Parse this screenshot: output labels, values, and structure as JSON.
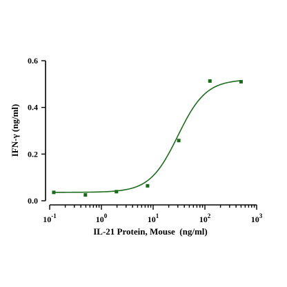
{
  "chart_data": {
    "type": "scatter",
    "title": "",
    "xlabel": "IL-21 Protein, Mouse  (ng/ml)",
    "ylabel": "IFN-γ (ng/ml)",
    "x_scale": "log",
    "xlim": [
      0.1,
      1000
    ],
    "ylim": [
      0.0,
      0.6
    ],
    "x_ticks": [
      {
        "value": 0.1,
        "base": "10",
        "exp": "-1"
      },
      {
        "value": 1,
        "base": "10",
        "exp": "0"
      },
      {
        "value": 10,
        "base": "10",
        "exp": "1"
      },
      {
        "value": 100,
        "base": "10",
        "exp": "2"
      },
      {
        "value": 1000,
        "base": "10",
        "exp": "3"
      }
    ],
    "y_ticks": [
      {
        "value": 0.0,
        "label": "0.0"
      },
      {
        "value": 0.2,
        "label": "0.2"
      },
      {
        "value": 0.4,
        "label": "0.4"
      },
      {
        "value": 0.6,
        "label": "0.6"
      }
    ],
    "grid": false,
    "color": "#1a6b1a",
    "series": [
      {
        "x": [
          0.12,
          0.49,
          1.95,
          7.8,
          31.25,
          125,
          500
        ],
        "y": [
          0.036,
          0.025,
          0.039,
          0.064,
          0.258,
          0.513,
          0.51
        ]
      }
    ],
    "fit": {
      "model": "4PL",
      "bottom": 0.036,
      "top": 0.52,
      "ec50": 30,
      "hill": 1.6
    }
  }
}
